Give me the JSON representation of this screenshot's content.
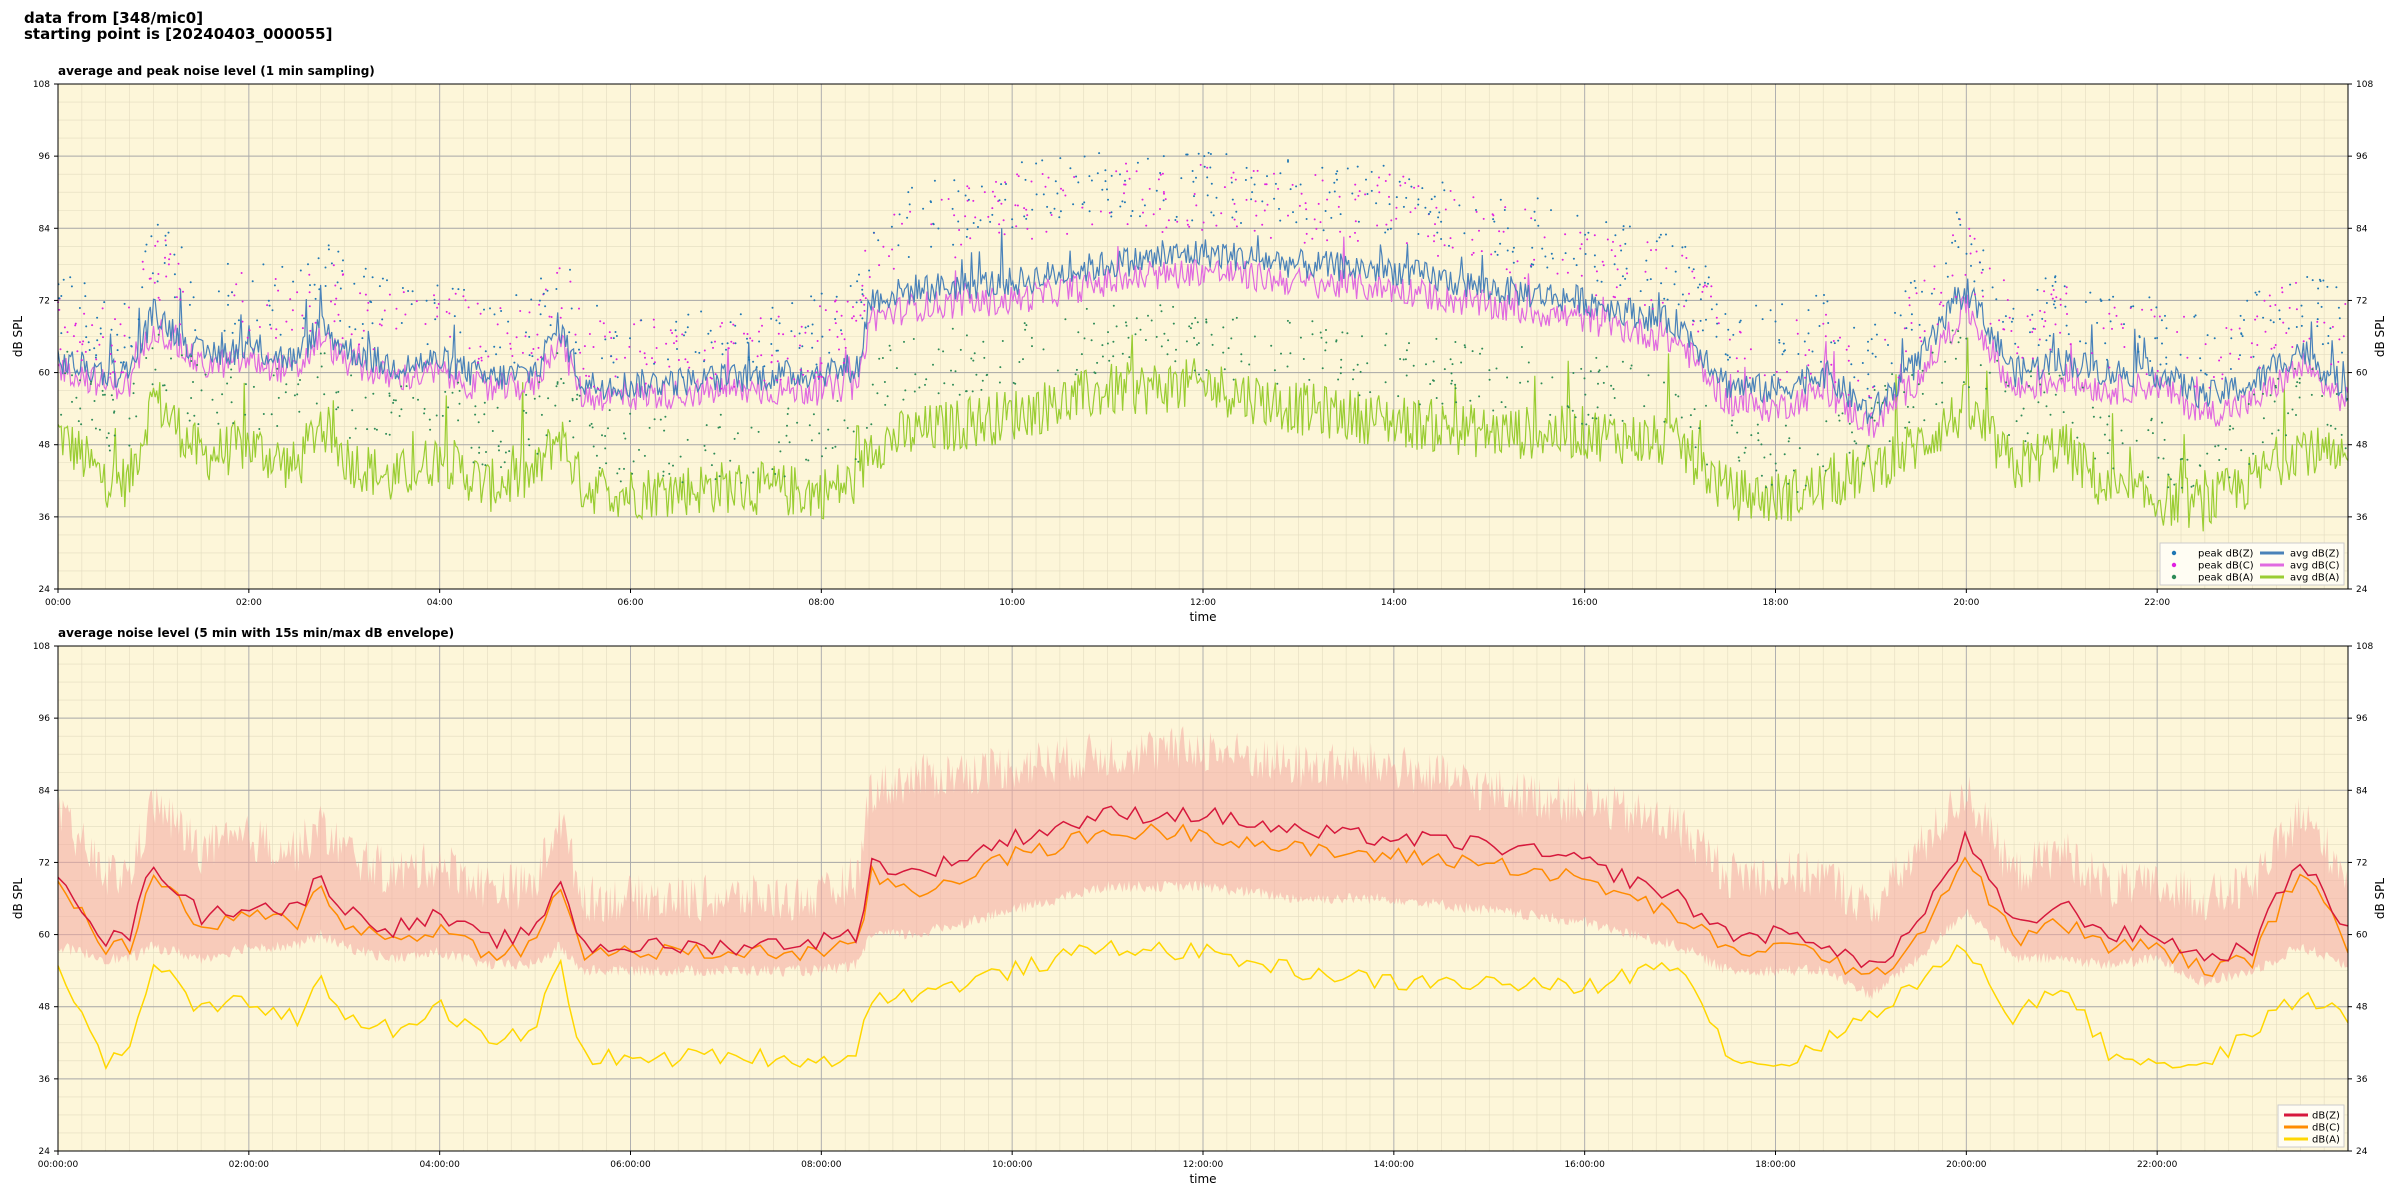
{
  "header": {
    "line1": "data from [348/mic0]",
    "line2": "starting point is [20240403_000055]"
  },
  "colors": {
    "background": "#fdf6d9",
    "avg_z": "#4a82b9",
    "avg_c": "#e06ae0",
    "avg_a": "#9acd32",
    "peak_z": "#1f77b4",
    "peak_c": "#e020e0",
    "peak_a": "#2e8b57",
    "z5": "#d6183c",
    "c5": "#ff8c00",
    "a5": "#ffd700",
    "envelope": "#f4a8a0"
  },
  "chart_data": [
    {
      "type": "line",
      "title": "average and peak noise level (1 min sampling)",
      "xlabel": "time",
      "ylabel": "dB SPL",
      "xlim_hours": [
        0,
        24
      ],
      "ylim": [
        24,
        108
      ],
      "yticks": [
        "24",
        "36",
        "48",
        "60",
        "72",
        "84",
        "96",
        "108"
      ],
      "xticks": [
        "00:00",
        "02:00",
        "04:00",
        "06:00",
        "08:00",
        "10:00",
        "12:00",
        "14:00",
        "16:00",
        "18:00",
        "20:00",
        "22:00"
      ],
      "grid": true,
      "legend_position": "bottom-right",
      "legend": [
        "peak dB(Z)",
        "peak dB(C)",
        "peak dB(A)",
        "avg dB(Z)",
        "avg dB(C)",
        "avg dB(A)"
      ],
      "x_hours": [
        0,
        0.5,
        0.75,
        1,
        1.5,
        2,
        2.5,
        2.75,
        3,
        3.5,
        4,
        4.5,
        5,
        5.25,
        5.5,
        6,
        7,
        8,
        8.4,
        8.5,
        9,
        10,
        11,
        12,
        13,
        14,
        15,
        16,
        17,
        17.5,
        18,
        18.5,
        19,
        19.5,
        20,
        20.5,
        21,
        21.5,
        22,
        22.5,
        23,
        23.5,
        24
      ],
      "series": [
        {
          "name": "avg dB(Z)",
          "values": [
            62,
            60,
            60,
            70,
            63,
            64,
            62,
            68,
            64,
            61,
            62,
            59,
            60,
            68,
            58,
            58,
            59,
            60,
            61,
            72,
            74,
            75,
            78,
            80,
            78,
            77,
            74,
            72,
            68,
            58,
            57,
            60,
            53,
            62,
            74,
            60,
            62,
            60,
            60,
            56,
            58,
            64,
            57
          ]
        },
        {
          "name": "avg dB(C)",
          "values": [
            61,
            58,
            58,
            68,
            61,
            62,
            60,
            66,
            62,
            59,
            60,
            57,
            58,
            66,
            56,
            56,
            57,
            57,
            58,
            69,
            71,
            72,
            75,
            77,
            75,
            74,
            71,
            69,
            65,
            55,
            54,
            57,
            51,
            59,
            71,
            57,
            59,
            57,
            58,
            53,
            55,
            61,
            55
          ]
        },
        {
          "name": "avg dB(A)",
          "values": [
            50,
            42,
            42,
            56,
            46,
            48,
            44,
            52,
            46,
            42,
            46,
            41,
            43,
            50,
            41,
            40,
            41,
            40,
            42,
            48,
            50,
            53,
            57,
            58,
            54,
            52,
            50,
            50,
            48,
            40,
            39,
            41,
            44,
            48,
            54,
            44,
            48,
            40,
            39,
            38,
            42,
            48,
            44
          ]
        },
        {
          "name": "peak dB(Z)",
          "values": [
            70,
            66,
            66,
            80,
            70,
            72,
            70,
            76,
            72,
            68,
            70,
            66,
            66,
            76,
            64,
            64,
            64,
            66,
            70,
            80,
            84,
            88,
            90,
            90,
            88,
            88,
            84,
            80,
            76,
            66,
            64,
            66,
            60,
            70,
            82,
            68,
            70,
            66,
            66,
            64,
            66,
            72,
            66
          ]
        },
        {
          "name": "peak dB(C)",
          "values": [
            68,
            64,
            64,
            78,
            68,
            70,
            68,
            74,
            70,
            66,
            68,
            64,
            64,
            74,
            62,
            62,
            62,
            64,
            68,
            78,
            82,
            86,
            88,
            88,
            86,
            86,
            82,
            78,
            74,
            64,
            62,
            64,
            58,
            68,
            80,
            66,
            68,
            64,
            64,
            62,
            64,
            70,
            64
          ]
        },
        {
          "name": "peak dB(A)",
          "values": [
            58,
            50,
            50,
            62,
            54,
            56,
            52,
            60,
            54,
            50,
            54,
            48,
            50,
            58,
            48,
            46,
            46,
            48,
            50,
            56,
            60,
            62,
            64,
            64,
            62,
            60,
            58,
            56,
            54,
            46,
            44,
            46,
            50,
            56,
            62,
            52,
            56,
            48,
            46,
            44,
            50,
            56,
            50
          ]
        }
      ]
    },
    {
      "type": "line",
      "title": "average noise level (5 min with 15s min/max dB envelope)",
      "xlabel": "time",
      "ylabel": "dB SPL",
      "xlim_hours": [
        0,
        24
      ],
      "ylim": [
        24,
        108
      ],
      "yticks": [
        "24",
        "36",
        "48",
        "60",
        "72",
        "84",
        "96",
        "108"
      ],
      "xticks": [
        "00:00:00",
        "02:00:00",
        "04:00:00",
        "06:00:00",
        "08:00:00",
        "10:00:00",
        "12:00:00",
        "14:00:00",
        "16:00:00",
        "18:00:00",
        "20:00:00",
        "22:00:00"
      ],
      "grid": true,
      "legend_position": "bottom-right",
      "legend": [
        "dB(Z)",
        "dB(C)",
        "dB(A)"
      ],
      "x_hours": [
        0,
        0.5,
        0.75,
        1,
        1.5,
        2,
        2.5,
        2.75,
        3,
        3.5,
        4,
        4.5,
        5,
        5.25,
        5.5,
        6,
        7,
        8,
        8.4,
        8.5,
        9,
        10,
        11,
        12,
        13,
        14,
        15,
        16,
        17,
        17.5,
        18,
        18.5,
        19,
        19.5,
        20,
        20.5,
        21,
        21.5,
        22,
        22.5,
        23,
        23.5,
        24
      ],
      "series": [
        {
          "name": "dB(Z)",
          "values": [
            71,
            59,
            60,
            72,
            63,
            65,
            64,
            70,
            64,
            61,
            63,
            59,
            60,
            70,
            58,
            58,
            58,
            59,
            60,
            72,
            70,
            76,
            80,
            80,
            77,
            76,
            75,
            72,
            66,
            60,
            60,
            59,
            54,
            62,
            76,
            61,
            65,
            60,
            60,
            56,
            58,
            73,
            60
          ]
        },
        {
          "name": "dB(C)",
          "values": [
            69,
            58,
            58,
            70,
            61,
            63,
            62,
            68,
            62,
            59,
            61,
            57,
            58,
            68,
            57,
            57,
            57,
            57,
            58,
            70,
            67,
            73,
            77,
            77,
            74,
            73,
            72,
            69,
            63,
            57,
            58,
            57,
            52,
            60,
            73,
            59,
            62,
            58,
            58,
            54,
            56,
            71,
            58
          ]
        },
        {
          "name": "dB(A)",
          "values": [
            54,
            39,
            40,
            56,
            47,
            49,
            46,
            52,
            47,
            44,
            48,
            42,
            44,
            56,
            40,
            39,
            40,
            39,
            40,
            50,
            50,
            54,
            58,
            57,
            54,
            52,
            52,
            51,
            56,
            40,
            38,
            42,
            47,
            52,
            58,
            46,
            52,
            40,
            39,
            38,
            44,
            50,
            46
          ]
        },
        {
          "name": "envelope max",
          "values": [
            80,
            70,
            70,
            82,
            74,
            76,
            74,
            78,
            74,
            70,
            72,
            68,
            68,
            80,
            66,
            66,
            66,
            66,
            70,
            84,
            86,
            88,
            90,
            91,
            88,
            88,
            84,
            82,
            78,
            70,
            70,
            70,
            64,
            74,
            84,
            70,
            74,
            68,
            68,
            66,
            68,
            80,
            70
          ]
        },
        {
          "name": "envelope min",
          "values": [
            58,
            56,
            56,
            58,
            56,
            58,
            58,
            60,
            58,
            56,
            57,
            55,
            55,
            58,
            54,
            54,
            54,
            54,
            55,
            60,
            60,
            64,
            68,
            68,
            66,
            66,
            64,
            62,
            58,
            54,
            54,
            54,
            50,
            56,
            64,
            56,
            56,
            55,
            56,
            52,
            54,
            58,
            55
          ]
        }
      ]
    }
  ]
}
